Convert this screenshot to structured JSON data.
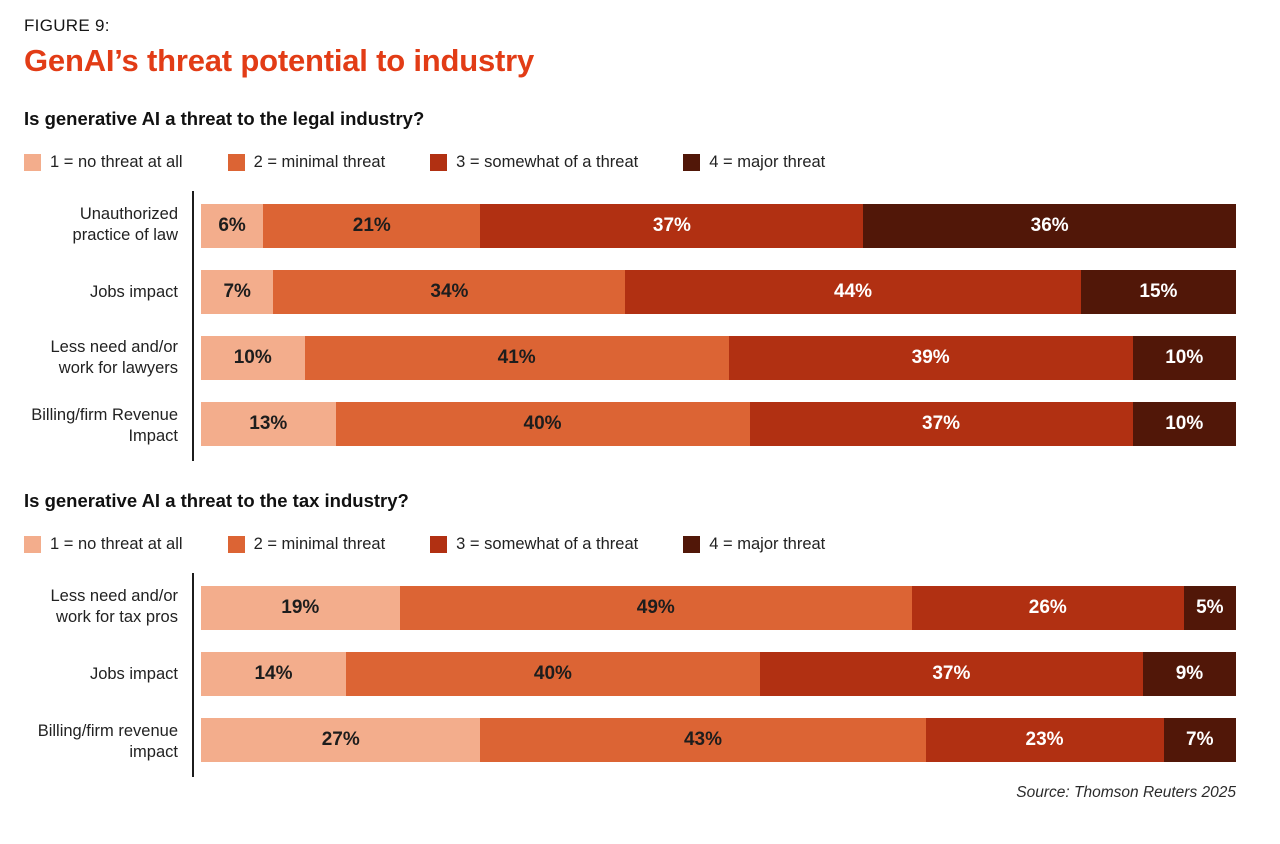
{
  "figure_label": "FIGURE 9:",
  "title": "GenAI’s threat potential to industry",
  "source": "Source: Thomson Reuters 2025",
  "accent_color": "#E23C16",
  "axis_color": "#1c1c1c",
  "chart_data": [
    {
      "type": "bar",
      "orientation": "horizontal",
      "stacked": true,
      "title": "Is generative AI a threat to the legal industry?",
      "unit": "%",
      "xlim": [
        0,
        100
      ],
      "legend_position": "top",
      "categories": [
        "Unauthorized practice of law",
        "Jobs impact",
        "Less need and/or work for lawyers",
        "Billing/firm Revenue Impact"
      ],
      "series": [
        {
          "name": "1 = no threat at all",
          "color": "#F3AD8C",
          "text": "dark",
          "values": [
            6,
            7,
            10,
            13
          ]
        },
        {
          "name": "2 = minimal threat",
          "color": "#DC6434",
          "text": "dark",
          "values": [
            21,
            34,
            41,
            40
          ]
        },
        {
          "name": "3 = somewhat of a threat",
          "color": "#B13012",
          "text": "light",
          "values": [
            37,
            44,
            39,
            37
          ]
        },
        {
          "name": "4 = major threat",
          "color": "#511708",
          "text": "light",
          "values": [
            36,
            15,
            10,
            10
          ]
        }
      ]
    },
    {
      "type": "bar",
      "orientation": "horizontal",
      "stacked": true,
      "title": "Is generative AI a threat to the tax industry?",
      "unit": "%",
      "xlim": [
        0,
        100
      ],
      "legend_position": "top",
      "categories": [
        "Less need and/or work for tax pros",
        "Jobs impact",
        "Billing/firm revenue impact"
      ],
      "series": [
        {
          "name": "1 = no threat at all",
          "color": "#F3AD8C",
          "text": "dark",
          "values": [
            19,
            14,
            27
          ]
        },
        {
          "name": "2 = minimal threat",
          "color": "#DC6434",
          "text": "dark",
          "values": [
            49,
            40,
            43
          ]
        },
        {
          "name": "3 = somewhat of a threat",
          "color": "#B13012",
          "text": "light",
          "values": [
            26,
            37,
            23
          ]
        },
        {
          "name": "4 = major threat",
          "color": "#511708",
          "text": "light",
          "values": [
            5,
            9,
            7
          ]
        }
      ]
    }
  ]
}
